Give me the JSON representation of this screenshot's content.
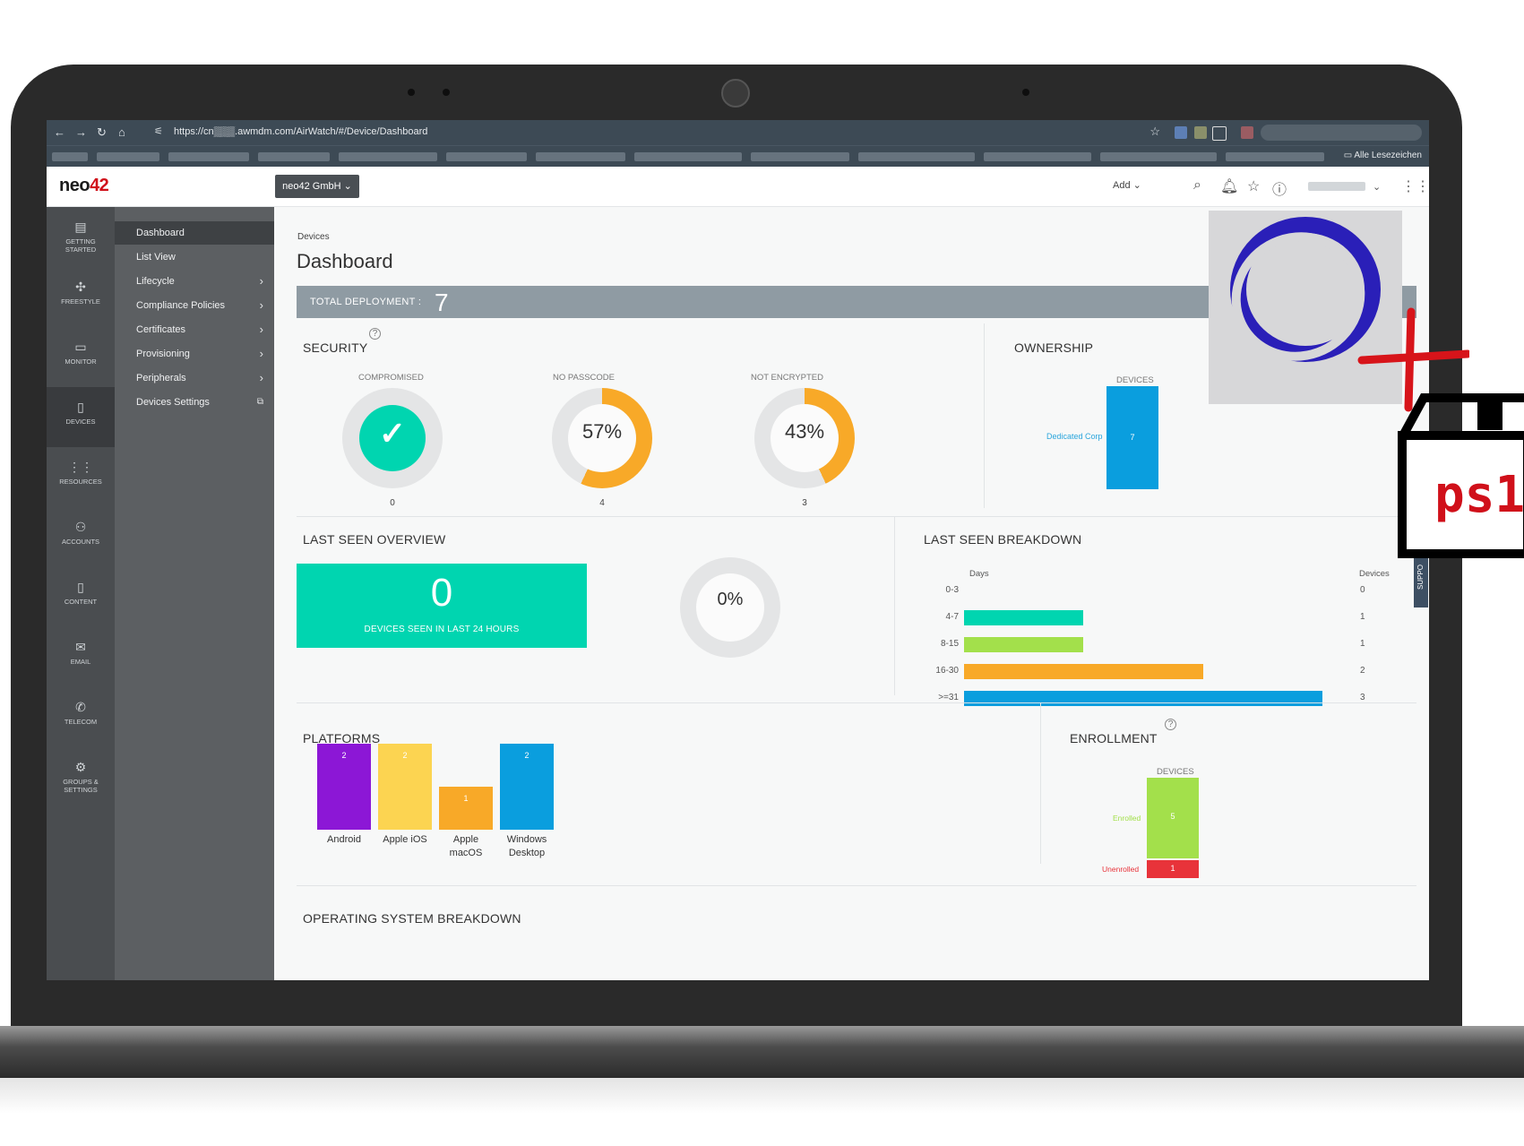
{
  "browser": {
    "url": "https://cn▒▒▒.awmdm.com/AirWatch/#/Device/Dashboard",
    "bookmarks_label": "Alle Lesezeichen"
  },
  "header": {
    "logo_prefix": "neo",
    "logo_suffix": "42",
    "org_select": "neo42 GmbH",
    "add_label": "Add"
  },
  "rail": [
    {
      "icon": "clipboard-icon",
      "glyph": "▤",
      "label_line1": "GETTING",
      "label_line2": "STARTED"
    },
    {
      "icon": "freestyle-icon",
      "glyph": "✣",
      "label_line1": "FREESTYLE",
      "label_line2": ""
    },
    {
      "icon": "monitor-icon",
      "glyph": "▭",
      "label_line1": "MONITOR",
      "label_line2": ""
    },
    {
      "icon": "device-icon",
      "glyph": "▯",
      "label_line1": "DEVICES",
      "label_line2": ""
    },
    {
      "icon": "grid-icon",
      "glyph": "⋮⋮",
      "label_line1": "RESOURCES",
      "label_line2": ""
    },
    {
      "icon": "accounts-icon",
      "glyph": "⚇",
      "label_line1": "ACCOUNTS",
      "label_line2": ""
    },
    {
      "icon": "document-icon",
      "glyph": "▯",
      "label_line1": "CONTENT",
      "label_line2": ""
    },
    {
      "icon": "mail-icon",
      "glyph": "✉",
      "label_line1": "EMAIL",
      "label_line2": ""
    },
    {
      "icon": "phone-icon",
      "glyph": "✆",
      "label_line1": "TELECOM",
      "label_line2": ""
    },
    {
      "icon": "gear-icon",
      "glyph": "⚙",
      "label_line1": "GROUPS &",
      "label_line2": "SETTINGS"
    }
  ],
  "subnav": [
    {
      "label": "Dashboard",
      "chevron": ""
    },
    {
      "label": "List View",
      "chevron": ""
    },
    {
      "label": "Lifecycle",
      "chevron": "›"
    },
    {
      "label": "Compliance Policies",
      "chevron": "›"
    },
    {
      "label": "Certificates",
      "chevron": "›"
    },
    {
      "label": "Provisioning",
      "chevron": "›"
    },
    {
      "label": "Peripherals",
      "chevron": "›"
    },
    {
      "label": "Devices Settings",
      "chevron": "⧉"
    }
  ],
  "main": {
    "breadcrumb": "Devices",
    "title": "Dashboard",
    "total_label": "TOTAL DEPLOYMENT :",
    "total_value": "7"
  },
  "security": {
    "title": "SECURITY",
    "compromised": {
      "label": "COMPROMISED",
      "count": "0"
    },
    "no_passcode": {
      "label": "NO PASSCODE",
      "percent": "57%",
      "fraction": 0.57,
      "count": "4"
    },
    "not_encrypted": {
      "label": "NOT ENCRYPTED",
      "percent": "43%",
      "fraction": 0.43,
      "count": "3"
    }
  },
  "ownership": {
    "title": "OWNERSHIP",
    "axis_label": "DEVICES",
    "category": "Dedicated Corp",
    "value": "7"
  },
  "last_seen_overview": {
    "title": "LAST SEEN OVERVIEW",
    "value": "0",
    "caption": "DEVICES SEEN IN LAST 24 HOURS",
    "percent": "0%"
  },
  "last_seen_breakdown": {
    "title": "LAST SEEN BREAKDOWN",
    "col_left": "Days",
    "col_right": "Devices"
  },
  "platforms": {
    "title": "PLATFORMS"
  },
  "enrollment": {
    "title": "ENROLLMENT",
    "axis_label": "DEVICES",
    "enrolled_label": "Enrolled",
    "enrolled_value": "5",
    "unenrolled_label": "Unenrolled",
    "unenrolled_value": "1"
  },
  "os_breakdown": {
    "title": "OPERATING SYSTEM BREAKDOWN"
  },
  "support_label": "SUPPO",
  "badge_text": "ps1",
  "colors": {
    "teal": "#00d5b0",
    "orange": "#f8a928",
    "lime": "#a3e04b",
    "blue": "#0a9ede",
    "purple": "#8c17d6",
    "yellow": "#fcd451",
    "red": "#e8333a"
  },
  "chart_data": [
    {
      "type": "bar",
      "title": "LAST SEEN BREAKDOWN",
      "orientation": "horizontal",
      "categories": [
        "0-3",
        "4-7",
        "8-15",
        "16-30",
        ">=31"
      ],
      "values": [
        0,
        1,
        1,
        2,
        3
      ],
      "colors": [
        "#00d5b0",
        "#00d5b0",
        "#a3e04b",
        "#f8a928",
        "#0a9ede"
      ],
      "xlabel": "Devices",
      "ylabel": "Days"
    },
    {
      "type": "bar",
      "title": "PLATFORMS",
      "categories": [
        "Android",
        "Apple iOS",
        "Apple macOS",
        "Windows Desktop"
      ],
      "category_lines": [
        [
          "Android"
        ],
        [
          "Apple iOS"
        ],
        [
          "Apple",
          "macOS"
        ],
        [
          "Windows",
          "Desktop"
        ]
      ],
      "values": [
        2,
        2,
        1,
        2
      ],
      "colors": [
        "#8c17d6",
        "#fcd451",
        "#f8a928",
        "#0a9ede"
      ]
    }
  ]
}
